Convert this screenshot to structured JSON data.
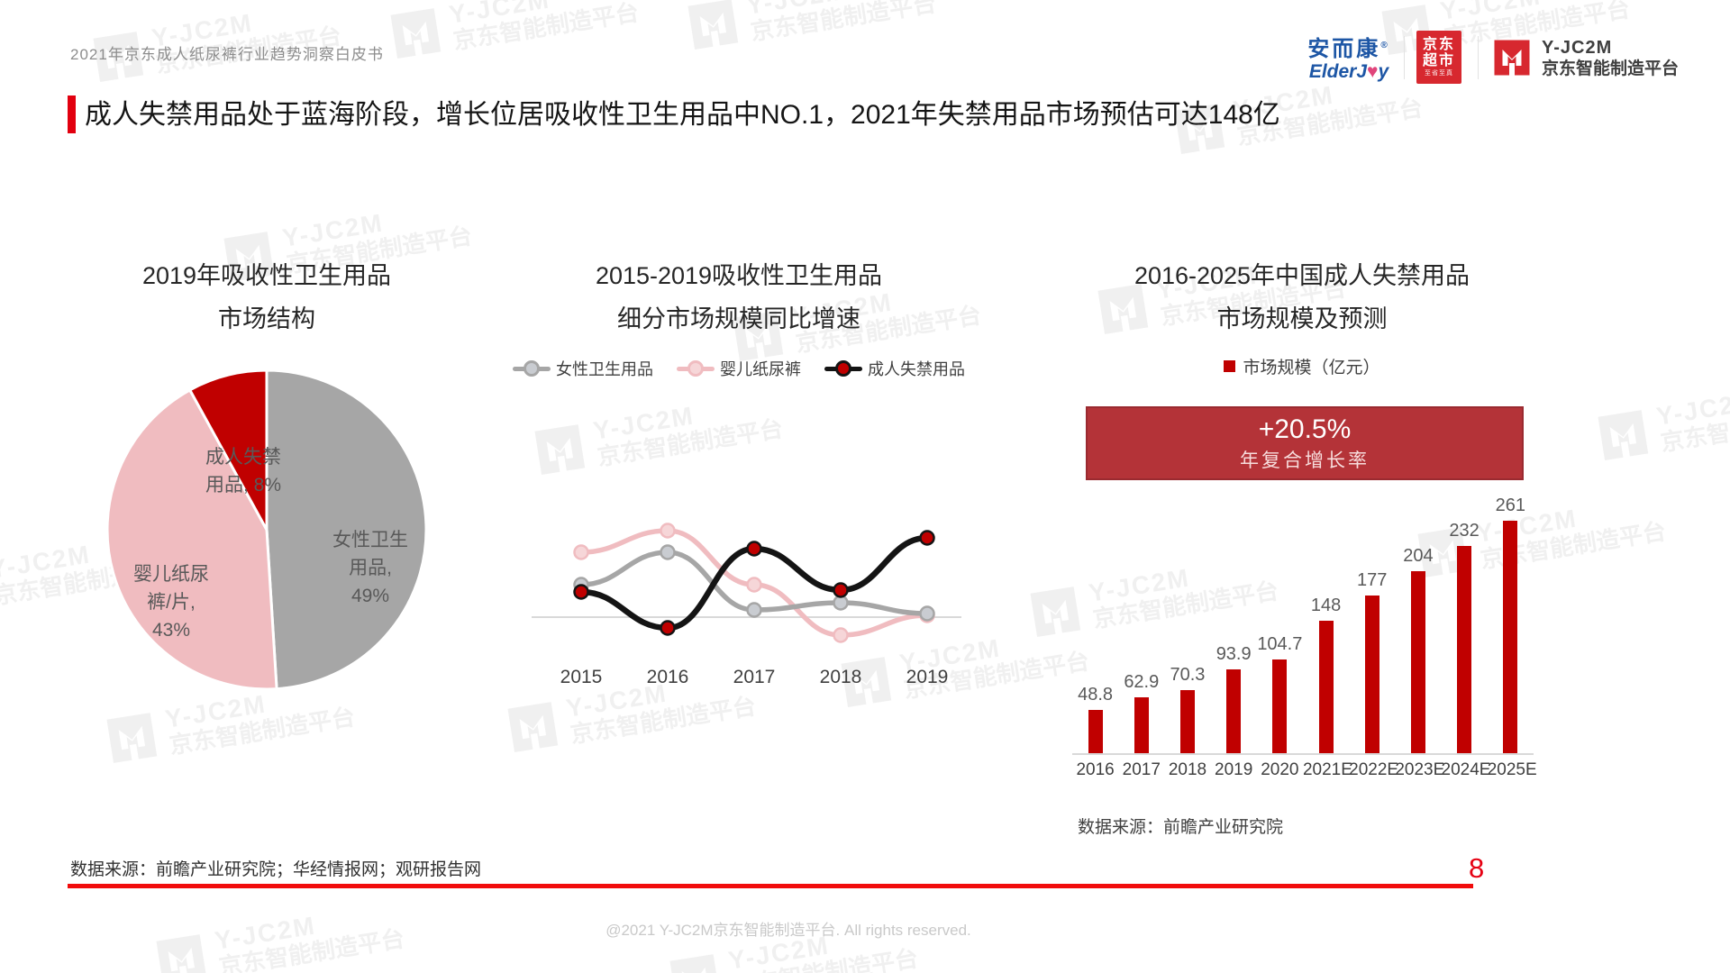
{
  "page": {
    "header": "2021年京东成人纸尿裤行业趋势洞察白皮书",
    "title": "成人失禁用品处于蓝海阶段，增长位居吸收性卫生用品中NO.1，2021年失禁用品市场预估可达148亿",
    "source_left": "数据来源：前瞻产业研究院；华经情报网；观研报告网",
    "page_number": "8",
    "footer": "@2021 Y-JC2M京东智能制造平台. All rights reserved.",
    "watermark_line1": "Y-JC2M",
    "watermark_line2": "京东智能制造平台"
  },
  "logos": {
    "elderjoy_cn": "安而康",
    "elderjoy_en_left": "ElderJ",
    "elderjoy_heart": "♥",
    "elderjoy_en_right": "y",
    "jd_market_top": "京东",
    "jd_market_bottom": "超市",
    "jd_market_tagline": "至省至真",
    "c2m_title": "Y-JC2M",
    "c2m_subtitle": "京东智能制造平台"
  },
  "chart_data": [
    {
      "type": "pie",
      "title_line1": "2019年吸收性卫生用品",
      "title_line2": "市场结构",
      "slices": [
        {
          "label": "女性卫生用品",
          "value": 49,
          "color": "#a6a6a6",
          "label_lines": [
            "女性卫生",
            "用品,",
            "49%"
          ]
        },
        {
          "label": "婴儿纸尿裤/片",
          "value": 43,
          "color": "#f0bcc0",
          "label_lines": [
            "婴儿纸尿",
            "裤/片,",
            "43%"
          ]
        },
        {
          "label": "成人失禁用品",
          "value": 8,
          "color": "#c00000",
          "label_lines": [
            "成人失禁",
            "用品, 8%"
          ]
        }
      ]
    },
    {
      "type": "line",
      "title_line1": "2015-2019吸收性卫生用品",
      "title_line2": "细分市场规模同比增速",
      "x": [
        "2015",
        "2016",
        "2017",
        "2018",
        "2019"
      ],
      "y_axis_visible": false,
      "values_estimated": true,
      "series": [
        {
          "name": "女性卫生用品",
          "color": "#a6a6a6",
          "values": [
            9,
            18,
            2,
            4,
            1
          ]
        },
        {
          "name": "婴儿纸尿裤",
          "color": "#f0bcc0",
          "values": [
            18,
            24,
            9,
            -5,
            0.5
          ]
        },
        {
          "name": "成人失禁用品",
          "color": "#141414",
          "marker_color": "#c00000",
          "values": [
            7,
            -3,
            19,
            7.5,
            22
          ]
        }
      ]
    },
    {
      "type": "bar",
      "title_line1": "2016-2025年中国成人失禁用品",
      "title_line2": "市场规模及预测",
      "legend": "市场规模（亿元）",
      "cagr_badge": {
        "value": "+20.5%",
        "label": "年复合增长率",
        "bg": "#b43338"
      },
      "categories": [
        "2016",
        "2017",
        "2018",
        "2019",
        "2020",
        "2021E",
        "2022E",
        "2023E",
        "2024E",
        "2025E"
      ],
      "values": [
        48.8,
        62.9,
        70.3,
        93.9,
        104.7,
        148,
        177,
        204,
        232,
        261
      ],
      "bar_color": "#c00000",
      "source": "数据来源：前瞻产业研究院"
    }
  ]
}
